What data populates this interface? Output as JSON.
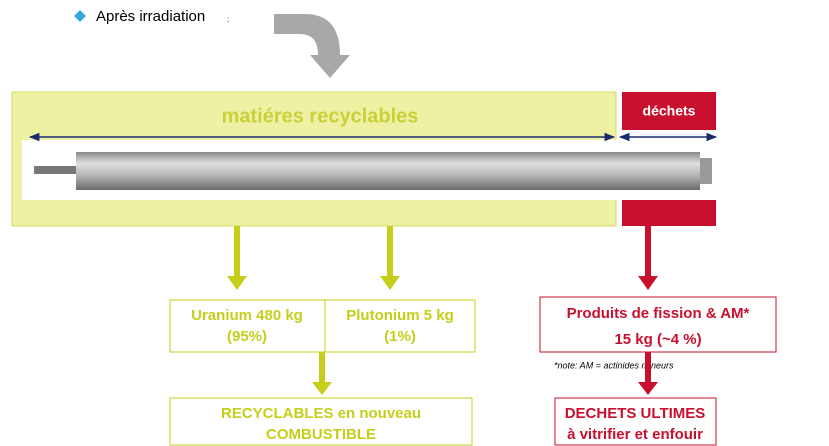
{
  "bullet": {
    "text": "Après irradiation",
    "colon": ":"
  },
  "rod": {
    "recyclable_label": "matiéres recyclables",
    "waste_label": "déchets"
  },
  "outputs": {
    "uranium": [
      "Uranium 480 kg",
      "(95%)"
    ],
    "plutonium": [
      "Plutonium 5 kg",
      "(1%)"
    ],
    "fission": [
      "Produits de fission & AM*",
      "15 kg (~4 %)"
    ],
    "note": "*note: AM = actinides mineurs"
  },
  "final": {
    "recyclables": [
      "RECYCLABLES en nouveau",
      "COMBUSTIBLE"
    ],
    "waste": [
      "DECHETS ULTIMES",
      "à vitrifier et enfouir"
    ]
  }
}
